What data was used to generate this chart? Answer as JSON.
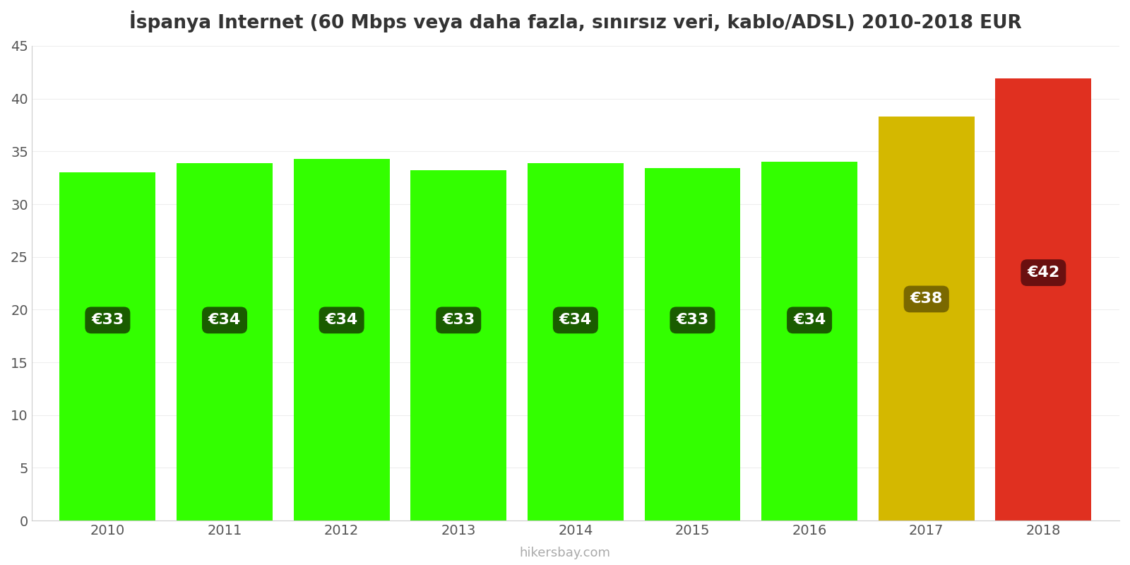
{
  "title": "İspanya Internet (60 Mbps veya daha fazla, sınırsız veri, kablo/ADSL) 2010-2018 EUR",
  "years": [
    2010,
    2011,
    2012,
    2013,
    2014,
    2015,
    2016,
    2017,
    2018
  ],
  "values": [
    33.0,
    33.9,
    34.3,
    33.2,
    33.9,
    33.4,
    34.0,
    38.3,
    41.9
  ],
  "labels": [
    "€33",
    "€34",
    "€34",
    "€33",
    "€34",
    "€33",
    "€34",
    "€38",
    "€42"
  ],
  "bar_colors": [
    "#33ff00",
    "#33ff00",
    "#33ff00",
    "#33ff00",
    "#33ff00",
    "#33ff00",
    "#33ff00",
    "#d4b800",
    "#e03020"
  ],
  "label_bg_colors": [
    "#1a5c00",
    "#1a5c00",
    "#1a5c00",
    "#1a5c00",
    "#1a5c00",
    "#1a5c00",
    "#1a5c00",
    "#7a6800",
    "#6a1010"
  ],
  "label_y_pos": [
    19.0,
    19.0,
    19.0,
    19.0,
    19.0,
    19.0,
    19.0,
    21.0,
    23.5
  ],
  "ylim": [
    0,
    45
  ],
  "yticks": [
    0,
    5,
    10,
    15,
    20,
    25,
    30,
    35,
    40,
    45
  ],
  "ylabel": "",
  "xlabel": "",
  "watermark": "hikersbay.com",
  "title_fontsize": 19,
  "tick_fontsize": 14,
  "label_fontsize": 16,
  "background_color": "#ffffff",
  "bar_width": 0.82
}
